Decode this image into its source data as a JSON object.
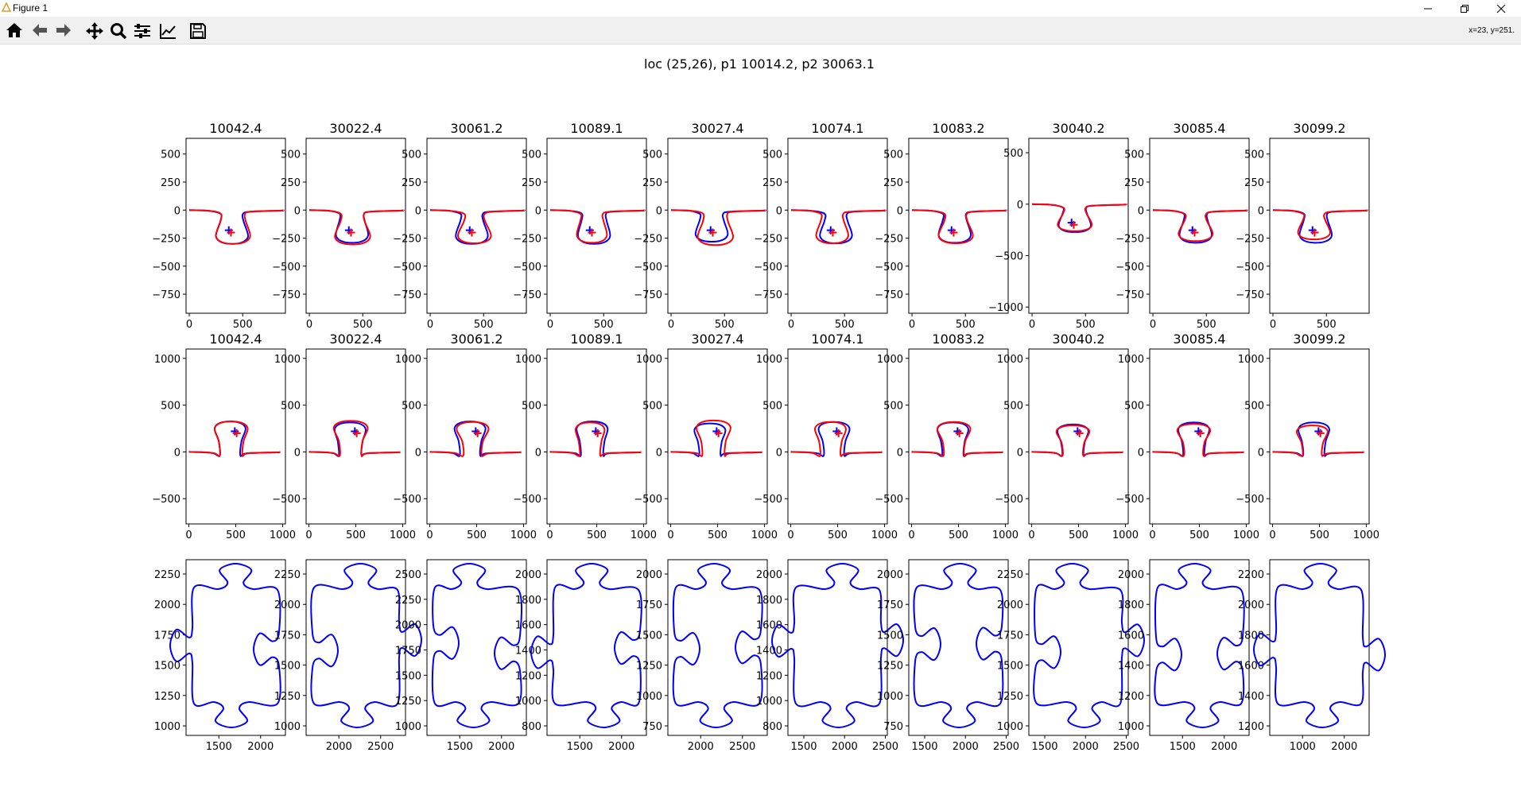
{
  "window": {
    "title": "Figure 1"
  },
  "toolbar": {
    "buttons": [
      "home-icon",
      "back-icon",
      "forward-icon",
      "pan-icon",
      "zoom-icon",
      "configure-icon",
      "edit-axes-icon",
      "save-icon"
    ],
    "coords": "x=23, y=251."
  },
  "figure": {
    "suptitle": "loc (25,26), p1 10014.2, p2 30063.1"
  },
  "colors": {
    "blue": "#0000ff",
    "red": "#ff0000"
  },
  "chart_data": [
    {
      "type": "line",
      "row": "top",
      "titles": [
        "10042.4",
        "30022.4",
        "30061.2",
        "10089.1",
        "30027.4",
        "10074.1",
        "10083.2",
        "30040.2",
        "30085.4",
        "30099.2"
      ],
      "xlim": [
        -30,
        900
      ],
      "ylim": [
        -920,
        640
      ],
      "x_ticks": [
        0,
        500
      ],
      "y_ticks": [
        500,
        250,
        0,
        -250,
        -500,
        -750
      ],
      "y_ticks_variant_panel_8": [
        500,
        0,
        -500,
        -1000
      ],
      "shape": "tab pointing down, max depth about -300, knob centre near (380,-190)",
      "series": [
        {
          "name": "",
          "color": "blue"
        },
        {
          "name": "",
          "color": "red"
        }
      ],
      "markers": "+ markers at centroid, blue and red"
    },
    {
      "type": "line",
      "row": "middle",
      "titles": [
        "10042.4",
        "30022.4",
        "30061.2",
        "10089.1",
        "30027.4",
        "10074.1",
        "10083.2",
        "30040.2",
        "30085.4",
        "30099.2"
      ],
      "xlim": [
        -30,
        1030
      ],
      "ylim": [
        -770,
        1100
      ],
      "x_ticks": [
        0,
        500,
        1000
      ],
      "y_ticks": [
        1000,
        500,
        0,
        -500
      ],
      "shape": "tab pointing up, height about 330, knob centre near (500,210)",
      "series": [
        {
          "name": "",
          "color": "blue"
        },
        {
          "name": "",
          "color": "red"
        }
      ],
      "markers": "+ markers at centroid, blue and red"
    },
    {
      "type": "line",
      "row": "bottom",
      "description": "outlines of jigsaw pieces, blue",
      "panels": [
        {
          "x_ticks": [
            1500,
            2000
          ],
          "y_ticks": [
            2250,
            2000,
            1750,
            1500,
            1250,
            1000
          ]
        },
        {
          "x_ticks": [
            2000,
            2500
          ],
          "y_ticks": [
            2250,
            2000,
            1750,
            1500,
            1250,
            1000
          ]
        },
        {
          "x_ticks": [
            1500,
            2000
          ],
          "y_ticks": [
            2500,
            2250,
            2000,
            1750,
            1500,
            1250,
            1000
          ]
        },
        {
          "x_ticks": [
            1500,
            2000
          ],
          "y_ticks": [
            2000,
            1800,
            1600,
            1400,
            1200,
            1000,
            800
          ]
        },
        {
          "x_ticks": [
            2000,
            2500
          ],
          "y_ticks": [
            2000,
            1750,
            1500,
            1250,
            1000,
            750
          ]
        },
        {
          "x_ticks": [
            1500,
            2000,
            2500
          ],
          "y_ticks": [
            2000,
            1800,
            1600,
            1400,
            1200,
            1000,
            800
          ]
        },
        {
          "x_ticks": [
            1500,
            2000,
            2500
          ],
          "y_ticks": [
            2000,
            1750,
            1500,
            1250,
            1000,
            750
          ]
        },
        {
          "x_ticks": [
            1500,
            2000,
            2500
          ],
          "y_ticks": [
            2250,
            2000,
            1750,
            1500,
            1250,
            1000
          ]
        },
        {
          "x_ticks": [
            1500,
            2000
          ],
          "y_ticks": [
            2000,
            1800,
            1600,
            1400,
            1200,
            1000
          ]
        },
        {
          "x_ticks": [
            1000,
            2000
          ],
          "y_ticks": [
            2200,
            2000,
            1800,
            1600,
            1400,
            1200
          ]
        }
      ]
    }
  ]
}
